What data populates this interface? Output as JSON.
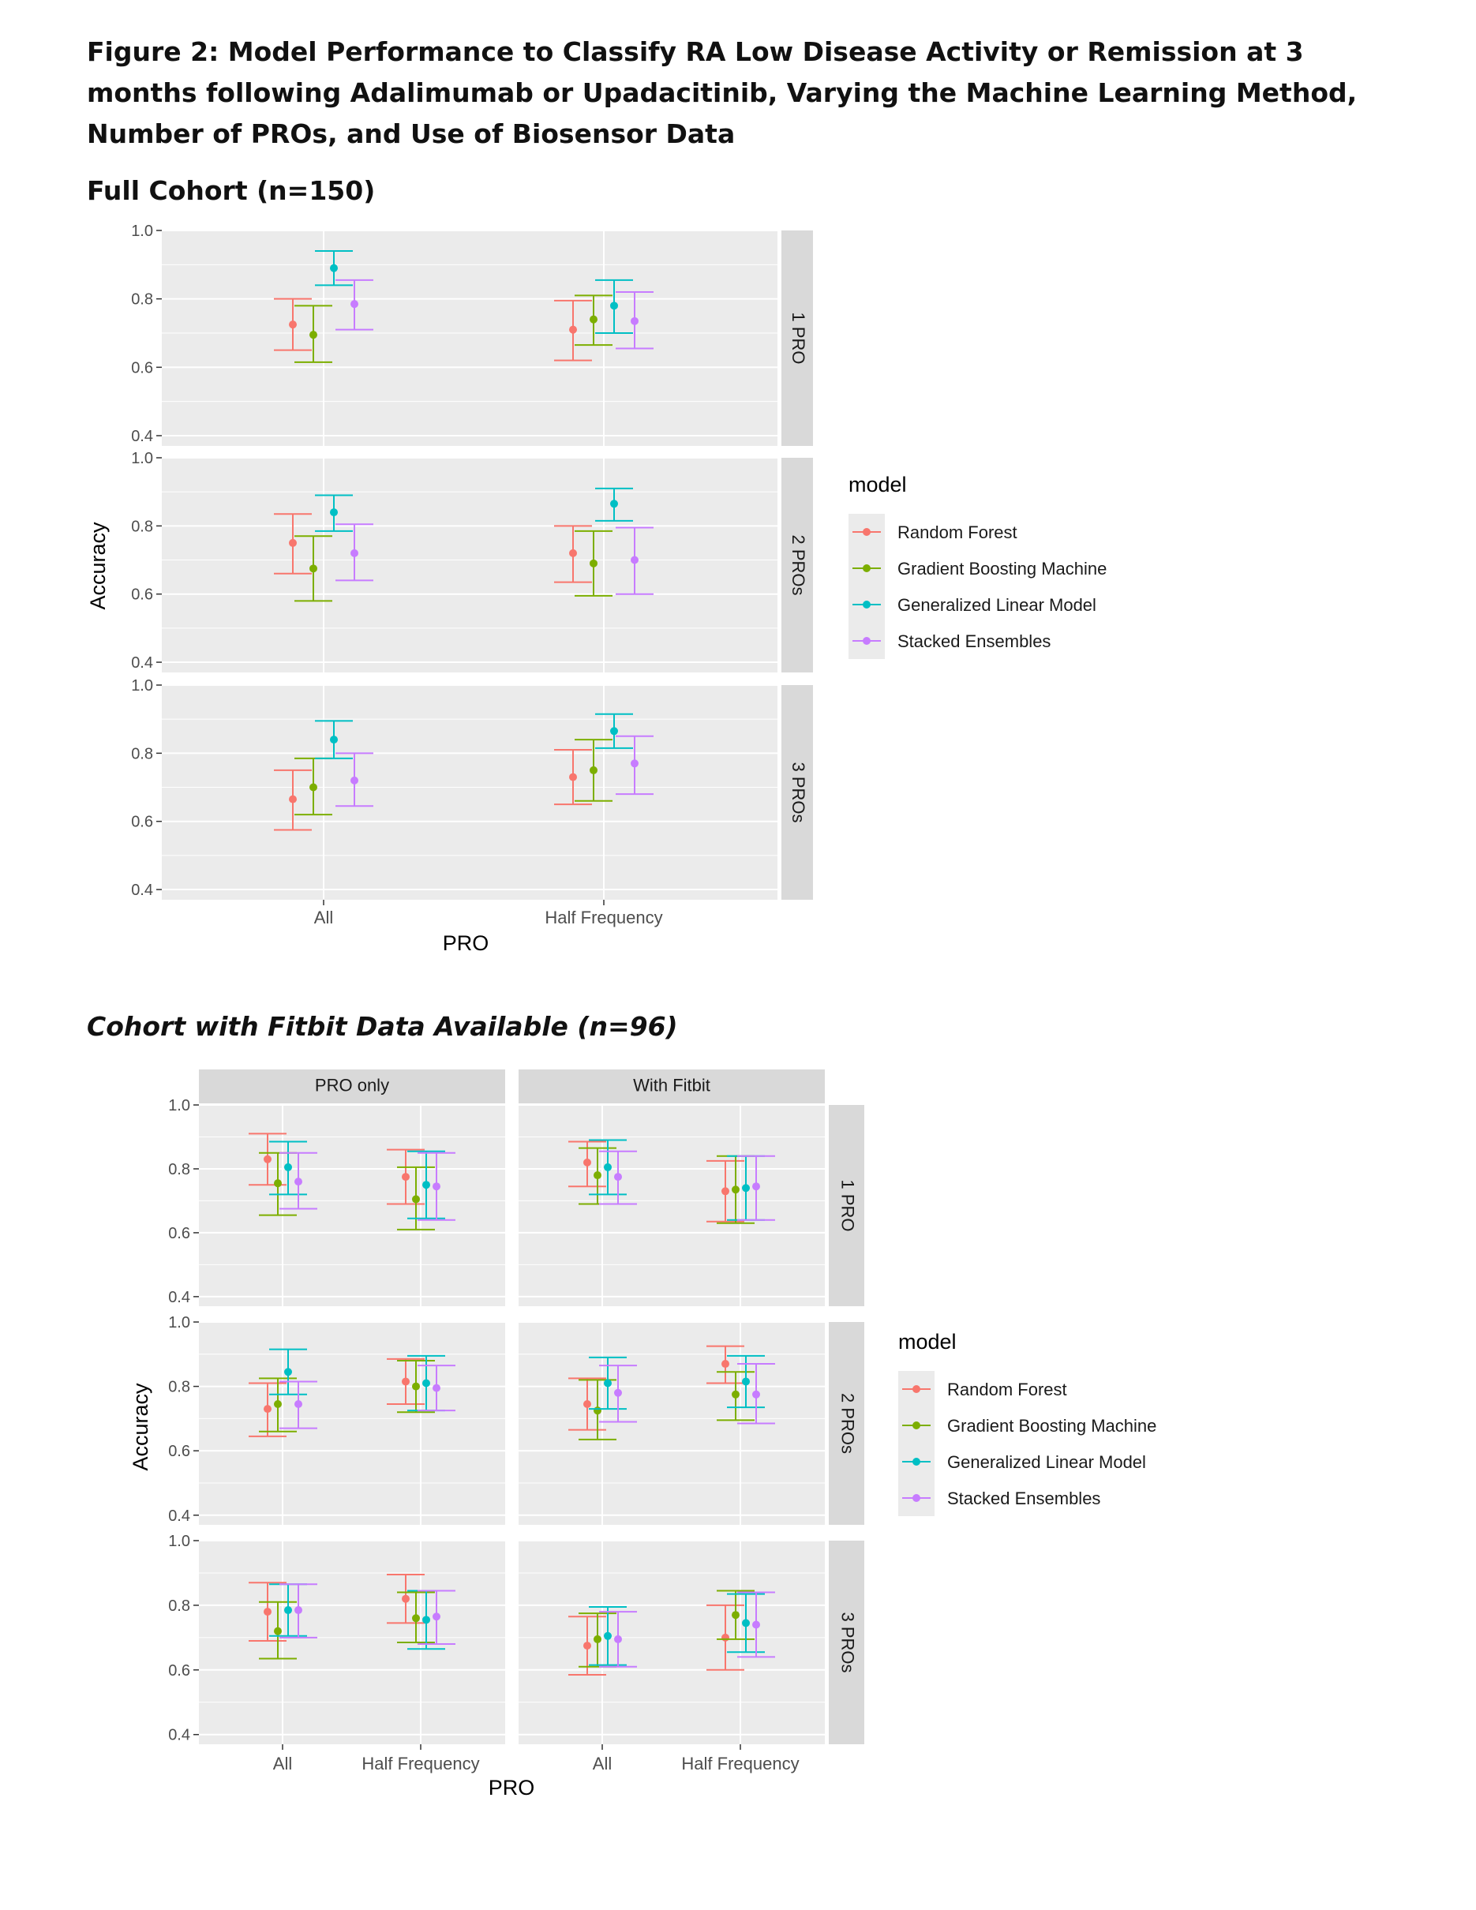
{
  "figure_title": "Figure 2: Model Performance to Classify RA Low Disease Activity or Remission at 3 months following Adalimumab or Upadacitinib, Varying the Machine Learning Method, Number of PROs, and Use of Biosensor Data",
  "section1_title": "Full Cohort (n=150)",
  "section2_title": "Cohort with Fitbit Data Available (n=96)",
  "colors": {
    "Random Forest": "#F8766D",
    "Gradient Boosting Machine": "#7CAE00",
    "Generalized Linear Model": "#00BFC4",
    "Stacked Ensembles": "#C77CFF",
    "panel_bg": "#EBEBEB",
    "strip_bg": "#D9D9D9",
    "grid": "#FFFFFF"
  },
  "chart_data": [
    {
      "type": "scatter",
      "subtype": "point with error bars (faceted)",
      "title": "Full Cohort (n=150)",
      "xlabel": "PRO",
      "ylabel": "Accuracy",
      "categories": [
        "All",
        "Half Frequency"
      ],
      "ylim": [
        0.37,
        1.0
      ],
      "yticks": [
        0.4,
        0.6,
        0.8,
        1.0
      ],
      "ytick_labels": [
        "0.4",
        "0.6",
        "0.8",
        "1.0"
      ],
      "legend_title": "model",
      "legend_position": "right",
      "models": [
        "Random Forest",
        "Gradient Boosting Machine",
        "Generalized Linear Model",
        "Stacked Ensembles"
      ],
      "row_facets": [
        "1 PRO",
        "2 PROs",
        "3 PROs"
      ],
      "col_facets": [
        ""
      ],
      "panels": [
        {
          "row": "1 PRO",
          "col": "",
          "series": [
            {
              "name": "Random Forest",
              "values": [
                [
                  0.725,
                  0.65,
                  0.8
                ],
                [
                  0.71,
                  0.62,
                  0.795
                ]
              ]
            },
            {
              "name": "Gradient Boosting Machine",
              "values": [
                [
                  0.695,
                  0.615,
                  0.78
                ],
                [
                  0.74,
                  0.665,
                  0.81
                ]
              ]
            },
            {
              "name": "Generalized Linear Model",
              "values": [
                [
                  0.89,
                  0.84,
                  0.94
                ],
                [
                  0.78,
                  0.7,
                  0.855
                ]
              ]
            },
            {
              "name": "Stacked Ensembles",
              "values": [
                [
                  0.785,
                  0.71,
                  0.855
                ],
                [
                  0.735,
                  0.655,
                  0.82
                ]
              ]
            }
          ]
        },
        {
          "row": "2 PROs",
          "col": "",
          "series": [
            {
              "name": "Random Forest",
              "values": [
                [
                  0.75,
                  0.66,
                  0.835
                ],
                [
                  0.72,
                  0.635,
                  0.8
                ]
              ]
            },
            {
              "name": "Gradient Boosting Machine",
              "values": [
                [
                  0.675,
                  0.58,
                  0.77
                ],
                [
                  0.69,
                  0.595,
                  0.785
                ]
              ]
            },
            {
              "name": "Generalized Linear Model",
              "values": [
                [
                  0.84,
                  0.785,
                  0.89
                ],
                [
                  0.865,
                  0.815,
                  0.91
                ]
              ]
            },
            {
              "name": "Stacked Ensembles",
              "values": [
                [
                  0.72,
                  0.64,
                  0.805
                ],
                [
                  0.7,
                  0.6,
                  0.795
                ]
              ]
            }
          ]
        },
        {
          "row": "3 PROs",
          "col": "",
          "series": [
            {
              "name": "Random Forest",
              "values": [
                [
                  0.665,
                  0.575,
                  0.75
                ],
                [
                  0.73,
                  0.65,
                  0.81
                ]
              ]
            },
            {
              "name": "Gradient Boosting Machine",
              "values": [
                [
                  0.7,
                  0.62,
                  0.785
                ],
                [
                  0.75,
                  0.66,
                  0.84
                ]
              ]
            },
            {
              "name": "Generalized Linear Model",
              "values": [
                [
                  0.84,
                  0.785,
                  0.895
                ],
                [
                  0.865,
                  0.815,
                  0.915
                ]
              ]
            },
            {
              "name": "Stacked Ensembles",
              "values": [
                [
                  0.72,
                  0.645,
                  0.8
                ],
                [
                  0.77,
                  0.68,
                  0.85
                ]
              ]
            }
          ]
        }
      ]
    },
    {
      "type": "scatter",
      "subtype": "point with error bars (faceted)",
      "title": "Cohort with Fitbit Data Available (n=96)",
      "xlabel": "PRO",
      "ylabel": "Accuracy",
      "categories": [
        "All",
        "Half Frequency"
      ],
      "ylim": [
        0.37,
        1.0
      ],
      "yticks": [
        0.4,
        0.6,
        0.8,
        1.0
      ],
      "ytick_labels": [
        "0.4",
        "0.6",
        "0.8",
        "1.0"
      ],
      "legend_title": "model",
      "legend_position": "right",
      "models": [
        "Random Forest",
        "Gradient Boosting Machine",
        "Generalized Linear Model",
        "Stacked Ensembles"
      ],
      "row_facets": [
        "1 PRO",
        "2 PROs",
        "3 PROs"
      ],
      "col_facets": [
        "PRO only",
        "With Fitbit"
      ],
      "panels": [
        {
          "row": "1 PRO",
          "col": "PRO only",
          "series": [
            {
              "name": "Random Forest",
              "values": [
                [
                  0.83,
                  0.75,
                  0.91
                ],
                [
                  0.775,
                  0.69,
                  0.86
                ]
              ]
            },
            {
              "name": "Gradient Boosting Machine",
              "values": [
                [
                  0.755,
                  0.655,
                  0.85
                ],
                [
                  0.705,
                  0.61,
                  0.805
                ]
              ]
            },
            {
              "name": "Generalized Linear Model",
              "values": [
                [
                  0.805,
                  0.72,
                  0.885
                ],
                [
                  0.75,
                  0.645,
                  0.855
                ]
              ]
            },
            {
              "name": "Stacked Ensembles",
              "values": [
                [
                  0.76,
                  0.675,
                  0.85
                ],
                [
                  0.745,
                  0.64,
                  0.85
                ]
              ]
            }
          ]
        },
        {
          "row": "1 PRO",
          "col": "With Fitbit",
          "series": [
            {
              "name": "Random Forest",
              "values": [
                [
                  0.82,
                  0.745,
                  0.885
                ],
                [
                  0.73,
                  0.635,
                  0.825
                ]
              ]
            },
            {
              "name": "Gradient Boosting Machine",
              "values": [
                [
                  0.78,
                  0.69,
                  0.865
                ],
                [
                  0.735,
                  0.63,
                  0.84
                ]
              ]
            },
            {
              "name": "Generalized Linear Model",
              "values": [
                [
                  0.805,
                  0.72,
                  0.89
                ],
                [
                  0.74,
                  0.64,
                  0.84
                ]
              ]
            },
            {
              "name": "Stacked Ensembles",
              "values": [
                [
                  0.775,
                  0.69,
                  0.855
                ],
                [
                  0.745,
                  0.64,
                  0.84
                ]
              ]
            }
          ]
        },
        {
          "row": "2 PROs",
          "col": "PRO only",
          "series": [
            {
              "name": "Random Forest",
              "values": [
                [
                  0.73,
                  0.645,
                  0.81
                ],
                [
                  0.815,
                  0.745,
                  0.885
                ]
              ]
            },
            {
              "name": "Gradient Boosting Machine",
              "values": [
                [
                  0.745,
                  0.66,
                  0.825
                ],
                [
                  0.8,
                  0.72,
                  0.88
                ]
              ]
            },
            {
              "name": "Generalized Linear Model",
              "values": [
                [
                  0.845,
                  0.775,
                  0.915
                ],
                [
                  0.81,
                  0.725,
                  0.895
                ]
              ]
            },
            {
              "name": "Stacked Ensembles",
              "values": [
                [
                  0.745,
                  0.67,
                  0.815
                ],
                [
                  0.795,
                  0.725,
                  0.865
                ]
              ]
            }
          ]
        },
        {
          "row": "2 PROs",
          "col": "With Fitbit",
          "series": [
            {
              "name": "Random Forest",
              "values": [
                [
                  0.745,
                  0.665,
                  0.825
                ],
                [
                  0.87,
                  0.81,
                  0.925
                ]
              ]
            },
            {
              "name": "Gradient Boosting Machine",
              "values": [
                [
                  0.725,
                  0.635,
                  0.82
                ],
                [
                  0.775,
                  0.695,
                  0.845
                ]
              ]
            },
            {
              "name": "Generalized Linear Model",
              "values": [
                [
                  0.81,
                  0.73,
                  0.89
                ],
                [
                  0.815,
                  0.735,
                  0.895
                ]
              ]
            },
            {
              "name": "Stacked Ensembles",
              "values": [
                [
                  0.78,
                  0.69,
                  0.865
                ],
                [
                  0.775,
                  0.685,
                  0.87
                ]
              ]
            }
          ]
        },
        {
          "row": "3 PROs",
          "col": "PRO only",
          "series": [
            {
              "name": "Random Forest",
              "values": [
                [
                  0.78,
                  0.69,
                  0.87
                ],
                [
                  0.82,
                  0.745,
                  0.895
                ]
              ]
            },
            {
              "name": "Gradient Boosting Machine",
              "values": [
                [
                  0.72,
                  0.635,
                  0.81
                ],
                [
                  0.76,
                  0.685,
                  0.84
                ]
              ]
            },
            {
              "name": "Generalized Linear Model",
              "values": [
                [
                  0.785,
                  0.705,
                  0.865
                ],
                [
                  0.755,
                  0.665,
                  0.845
                ]
              ]
            },
            {
              "name": "Stacked Ensembles",
              "values": [
                [
                  0.785,
                  0.7,
                  0.865
                ],
                [
                  0.765,
                  0.68,
                  0.845
                ]
              ]
            }
          ]
        },
        {
          "row": "3 PROs",
          "col": "With Fitbit",
          "series": [
            {
              "name": "Random Forest",
              "values": [
                [
                  0.675,
                  0.585,
                  0.765
                ],
                [
                  0.7,
                  0.6,
                  0.8
                ]
              ]
            },
            {
              "name": "Gradient Boosting Machine",
              "values": [
                [
                  0.695,
                  0.61,
                  0.775
                ],
                [
                  0.77,
                  0.695,
                  0.845
                ]
              ]
            },
            {
              "name": "Generalized Linear Model",
              "values": [
                [
                  0.705,
                  0.615,
                  0.795
                ],
                [
                  0.745,
                  0.655,
                  0.835
                ]
              ]
            },
            {
              "name": "Stacked Ensembles",
              "values": [
                [
                  0.695,
                  0.61,
                  0.78
                ],
                [
                  0.74,
                  0.64,
                  0.84
                ]
              ]
            }
          ]
        }
      ]
    }
  ]
}
